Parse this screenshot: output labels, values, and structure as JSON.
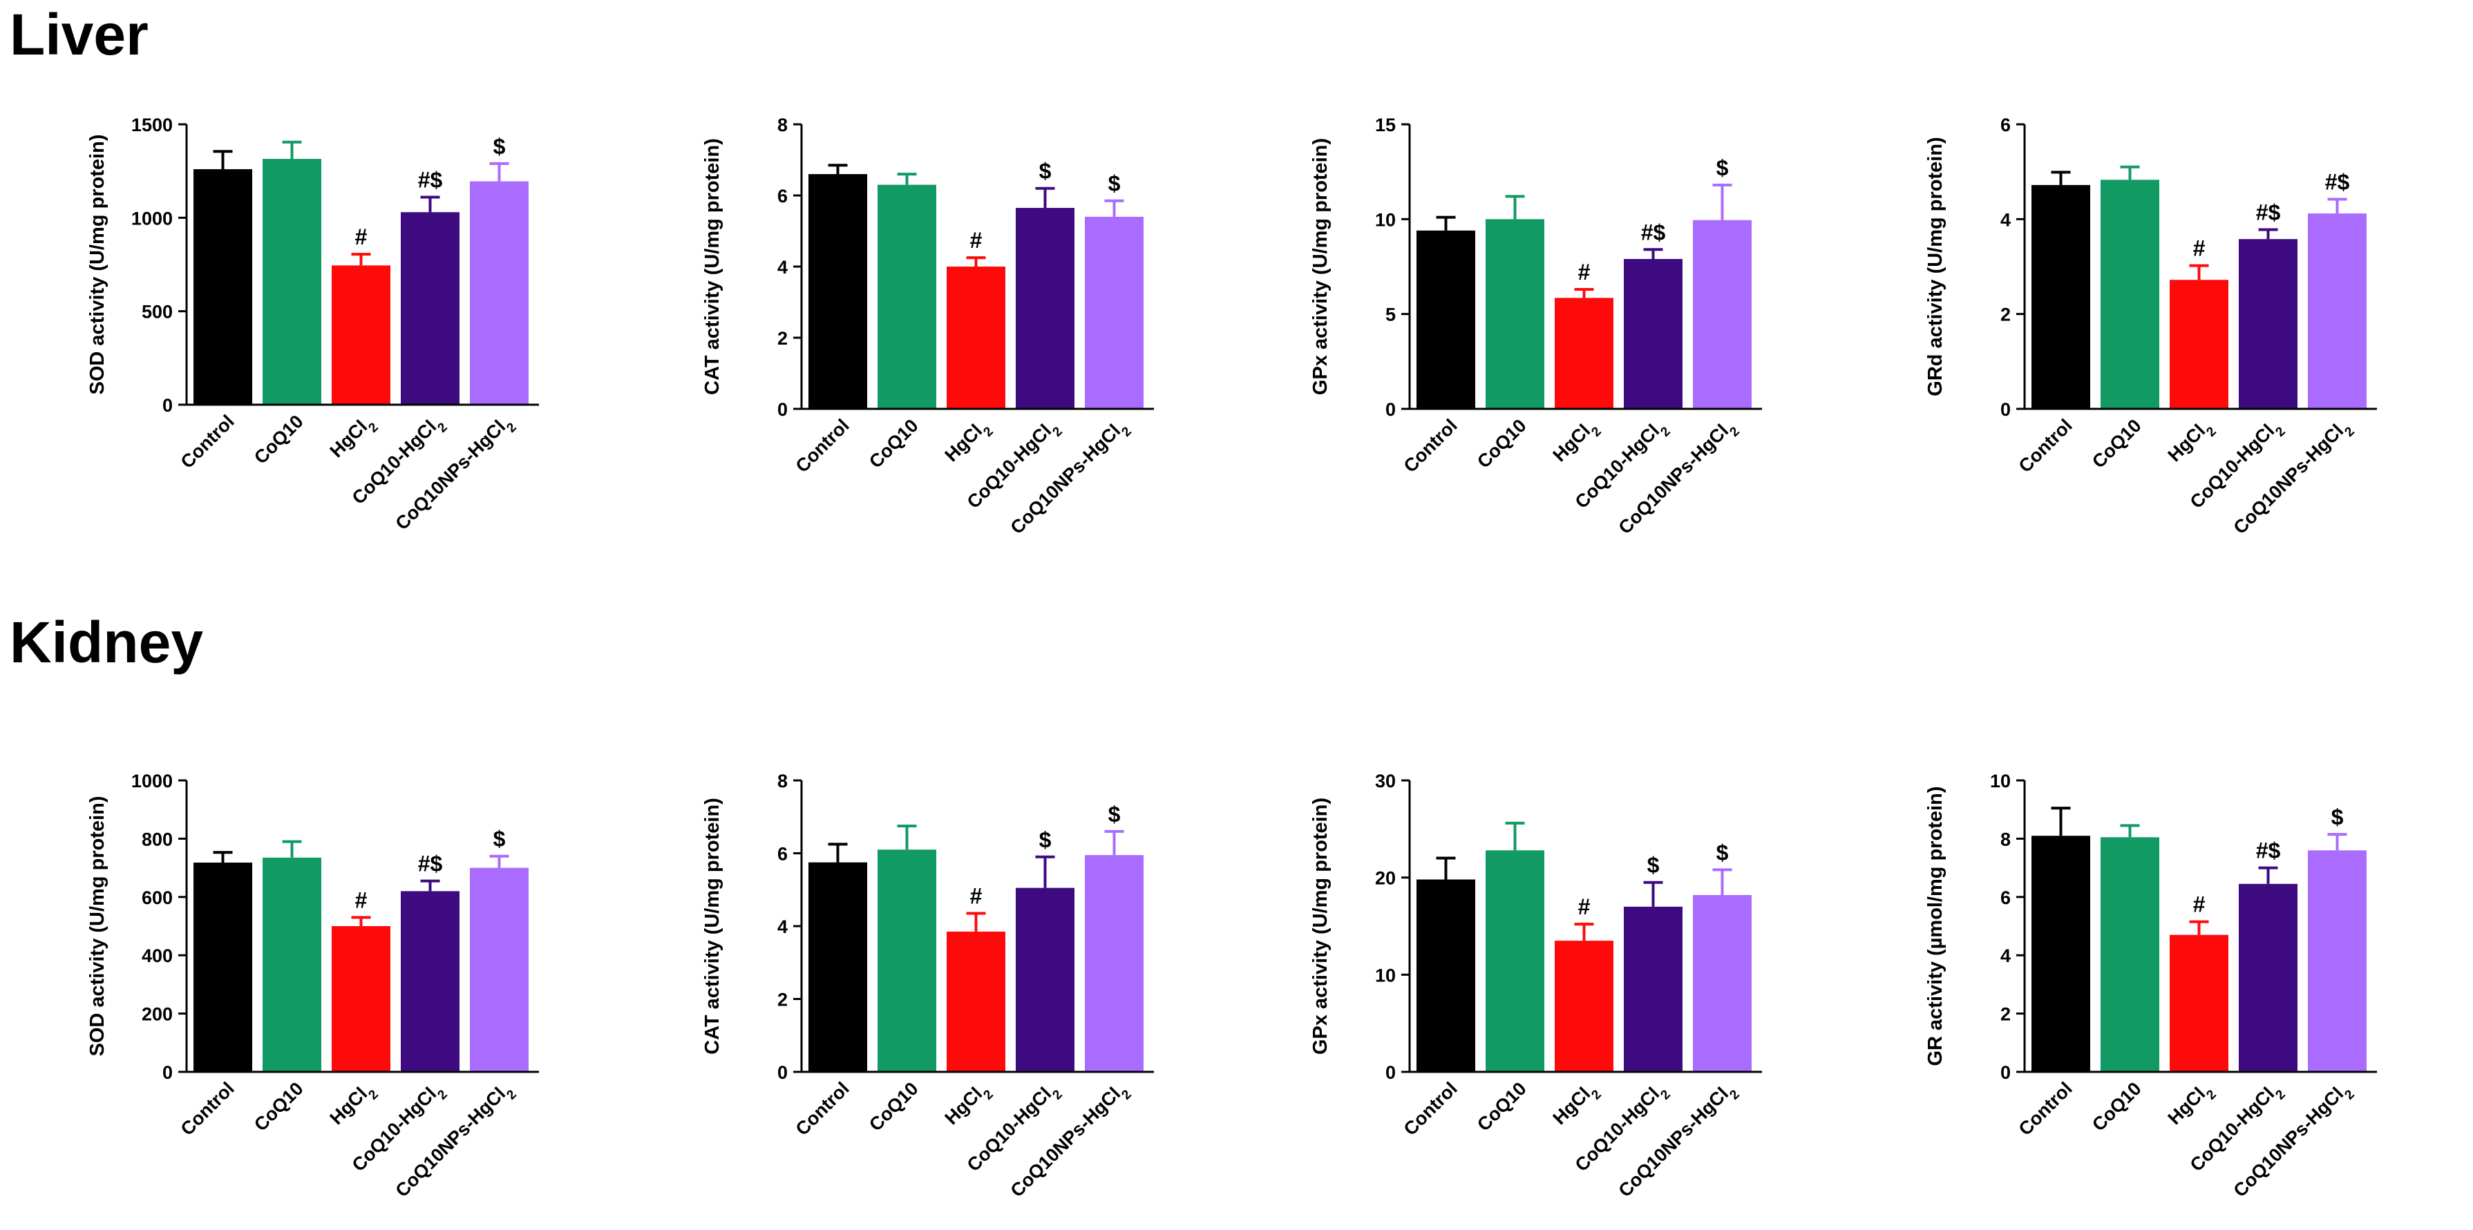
{
  "sections": {
    "liver": {
      "title": "Liver"
    },
    "kidney": {
      "title": "Kidney"
    }
  },
  "colors": [
    "#000000",
    "#129a64",
    "#ff0a0a",
    "#3e0a80",
    "#a96cff"
  ],
  "chart_data": [
    {
      "type": "bar",
      "section": "Liver",
      "categories": [
        "Control",
        "CoQ10",
        "HgCl2",
        "CoQ10-HgCl2",
        "CoQ10NPs-HgCl2"
      ],
      "values": [
        1260,
        1315,
        745,
        1030,
        1195
      ],
      "errors": [
        95,
        90,
        60,
        80,
        95
      ],
      "annotations": [
        "",
        "",
        "#",
        "#$",
        "$"
      ],
      "ylabel": "SOD activity (U/mg protein)",
      "ylim": [
        0,
        1500
      ],
      "yticks": [
        0,
        500,
        1000,
        1500
      ]
    },
    {
      "type": "bar",
      "section": "Liver",
      "categories": [
        "Control",
        "CoQ10",
        "HgCl2",
        "CoQ10-HgCl2",
        "CoQ10NPs-HgCl2"
      ],
      "values": [
        6.6,
        6.3,
        4.0,
        5.65,
        5.4
      ],
      "errors": [
        0.25,
        0.3,
        0.25,
        0.55,
        0.45
      ],
      "annotations": [
        "",
        "",
        "#",
        "$",
        "$"
      ],
      "ylabel": "CAT activity (U/mg protein)",
      "ylim": [
        0,
        8
      ],
      "yticks": [
        0,
        2,
        4,
        6,
        8
      ]
    },
    {
      "type": "bar",
      "section": "Liver",
      "categories": [
        "Control",
        "CoQ10",
        "HgCl2",
        "CoQ10-HgCl2",
        "CoQ10NPs-HgCl2"
      ],
      "values": [
        9.4,
        10.0,
        5.85,
        7.9,
        9.95
      ],
      "errors": [
        0.7,
        1.2,
        0.45,
        0.5,
        1.85
      ],
      "annotations": [
        "",
        "",
        "#",
        "#$",
        "$"
      ],
      "ylabel": "GPx activity (U/mg protein)",
      "ylim": [
        0,
        15
      ],
      "yticks": [
        0,
        5,
        10,
        15
      ]
    },
    {
      "type": "bar",
      "section": "Liver",
      "categories": [
        "Control",
        "CoQ10",
        "HgCl2",
        "CoQ10-HgCl2",
        "CoQ10NPs-HgCl2"
      ],
      "values": [
        4.72,
        4.83,
        2.72,
        3.58,
        4.12
      ],
      "errors": [
        0.27,
        0.27,
        0.3,
        0.2,
        0.3
      ],
      "annotations": [
        "",
        "",
        "#",
        "#$",
        "#$"
      ],
      "ylabel": "GRd activity (U/mg protein)",
      "ylim": [
        0,
        6
      ],
      "yticks": [
        0,
        2,
        4,
        6
      ]
    },
    {
      "type": "bar",
      "section": "Kidney",
      "categories": [
        "Control",
        "CoQ10",
        "HgCl2",
        "CoQ10-HgCl2",
        "CoQ10NPs-HgCl2"
      ],
      "values": [
        718,
        735,
        500,
        620,
        700
      ],
      "errors": [
        35,
        55,
        30,
        35,
        40
      ],
      "annotations": [
        "",
        "",
        "#",
        "#$",
        "$"
      ],
      "ylabel": "SOD activity (U/mg protein)",
      "ylim": [
        0,
        1000
      ],
      "yticks": [
        0,
        200,
        400,
        600,
        800,
        1000
      ]
    },
    {
      "type": "bar",
      "section": "Kidney",
      "categories": [
        "Control",
        "CoQ10",
        "HgCl2",
        "CoQ10-HgCl2",
        "CoQ10NPs-HgCl2"
      ],
      "values": [
        5.75,
        6.1,
        3.85,
        5.05,
        5.95
      ],
      "errors": [
        0.5,
        0.65,
        0.5,
        0.85,
        0.65
      ],
      "annotations": [
        "",
        "",
        "#",
        "$",
        "$"
      ],
      "ylabel": "CAT activity (U/mg protein)",
      "ylim": [
        0,
        8
      ],
      "yticks": [
        0,
        2,
        4,
        6,
        8
      ]
    },
    {
      "type": "bar",
      "section": "Kidney",
      "categories": [
        "Control",
        "CoQ10",
        "HgCl2",
        "CoQ10-HgCl2",
        "CoQ10NPs-HgCl2"
      ],
      "values": [
        19.8,
        22.8,
        13.5,
        17.0,
        18.2
      ],
      "errors": [
        2.2,
        2.8,
        1.7,
        2.5,
        2.6
      ],
      "annotations": [
        "",
        "",
        "#",
        "$",
        "$"
      ],
      "ylabel": "GPx activity (U/mg protein)",
      "ylim": [
        0,
        30
      ],
      "yticks": [
        0,
        10,
        20,
        30
      ]
    },
    {
      "type": "bar",
      "section": "Kidney",
      "categories": [
        "Control",
        "CoQ10",
        "HgCl2",
        "CoQ10-HgCl2",
        "CoQ10NPs-HgCl2"
      ],
      "values": [
        8.1,
        8.05,
        4.7,
        6.45,
        7.6
      ],
      "errors": [
        0.95,
        0.4,
        0.45,
        0.55,
        0.55
      ],
      "annotations": [
        "",
        "",
        "#",
        "#$",
        "$"
      ],
      "ylabel": "GR activity (µmol/mg protein)",
      "ylim": [
        0,
        10
      ],
      "yticks": [
        0,
        2,
        4,
        6,
        8,
        10
      ]
    }
  ]
}
